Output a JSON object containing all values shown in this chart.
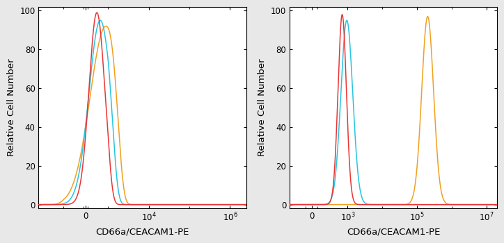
{
  "xlabel": "CD66a/CEACAM1-PE",
  "ylabel": "Relative Cell Number",
  "ylim": [
    -2,
    102
  ],
  "yticks": [
    0,
    20,
    40,
    60,
    80,
    100
  ],
  "ytick_labels": [
    "0",
    "20",
    "40",
    "60",
    "80",
    "100"
  ],
  "bg_color": "#e8e8e8",
  "ax_bg": "#ffffff",
  "colors": {
    "red": "#e83535",
    "cyan": "#28c4e0",
    "orange": "#f0a020"
  },
  "panel1": {
    "linthresh": 1000,
    "linscale": 0.5,
    "xlim_left": -4000,
    "xlim_right": 2500000,
    "xtick_positions": [
      0,
      10000,
      1000000
    ],
    "xtick_labels": [
      "0",
      "10$^4$",
      "10$^6$"
    ],
    "red_peak": 500,
    "red_sigma": 350,
    "red_height": 99,
    "cyan_peak": 650,
    "cyan_sigma": 500,
    "cyan_height": 95,
    "orange_peak": 900,
    "orange_sigma": 700,
    "orange_height": 92
  },
  "panel2": {
    "linthresh": 200,
    "linscale": 0.3,
    "xlim_left": -400,
    "xlim_right": 20000000,
    "xtick_positions": [
      0,
      1000,
      100000,
      10000000
    ],
    "xtick_labels": [
      "0",
      "10$^3$",
      "10$^5$",
      "10$^7$"
    ],
    "red_peak": 700,
    "red_sigma_log": 0.12,
    "red_height": 98,
    "cyan_peak": 950,
    "cyan_sigma_log": 0.17,
    "cyan_height": 95,
    "orange_peak": 200000,
    "orange_sigma_log": 0.17,
    "orange_height": 97
  }
}
